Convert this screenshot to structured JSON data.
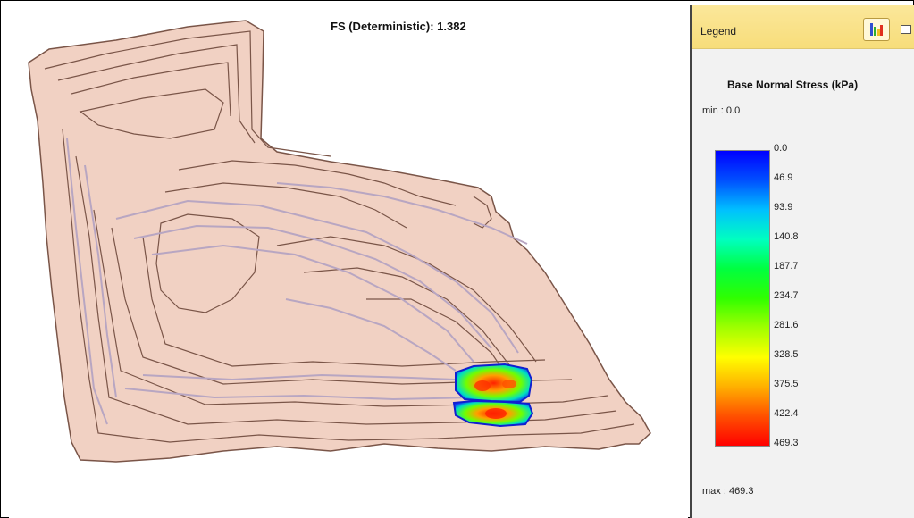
{
  "plot": {
    "title": "FS (Deterministic): 1.382"
  },
  "legend": {
    "header_label": "Legend",
    "title": "Base Normal Stress (kPa)",
    "min_text": "min :  0.0",
    "max_text": "max : 469.3",
    "ticks": [
      "0.0",
      "46.9",
      "93.9",
      "140.8",
      "187.7",
      "234.7",
      "281.6",
      "328.5",
      "375.5",
      "422.4",
      "469.3"
    ],
    "button_icon": "chart-legend-icon",
    "button2_icon": "minimize-icon"
  },
  "colors": {
    "terrain_fill": "#f1d1c3",
    "contour_dark": "#7a5548",
    "contour_light": "#b8a6c2",
    "header_bg": "#f9e28c"
  }
}
